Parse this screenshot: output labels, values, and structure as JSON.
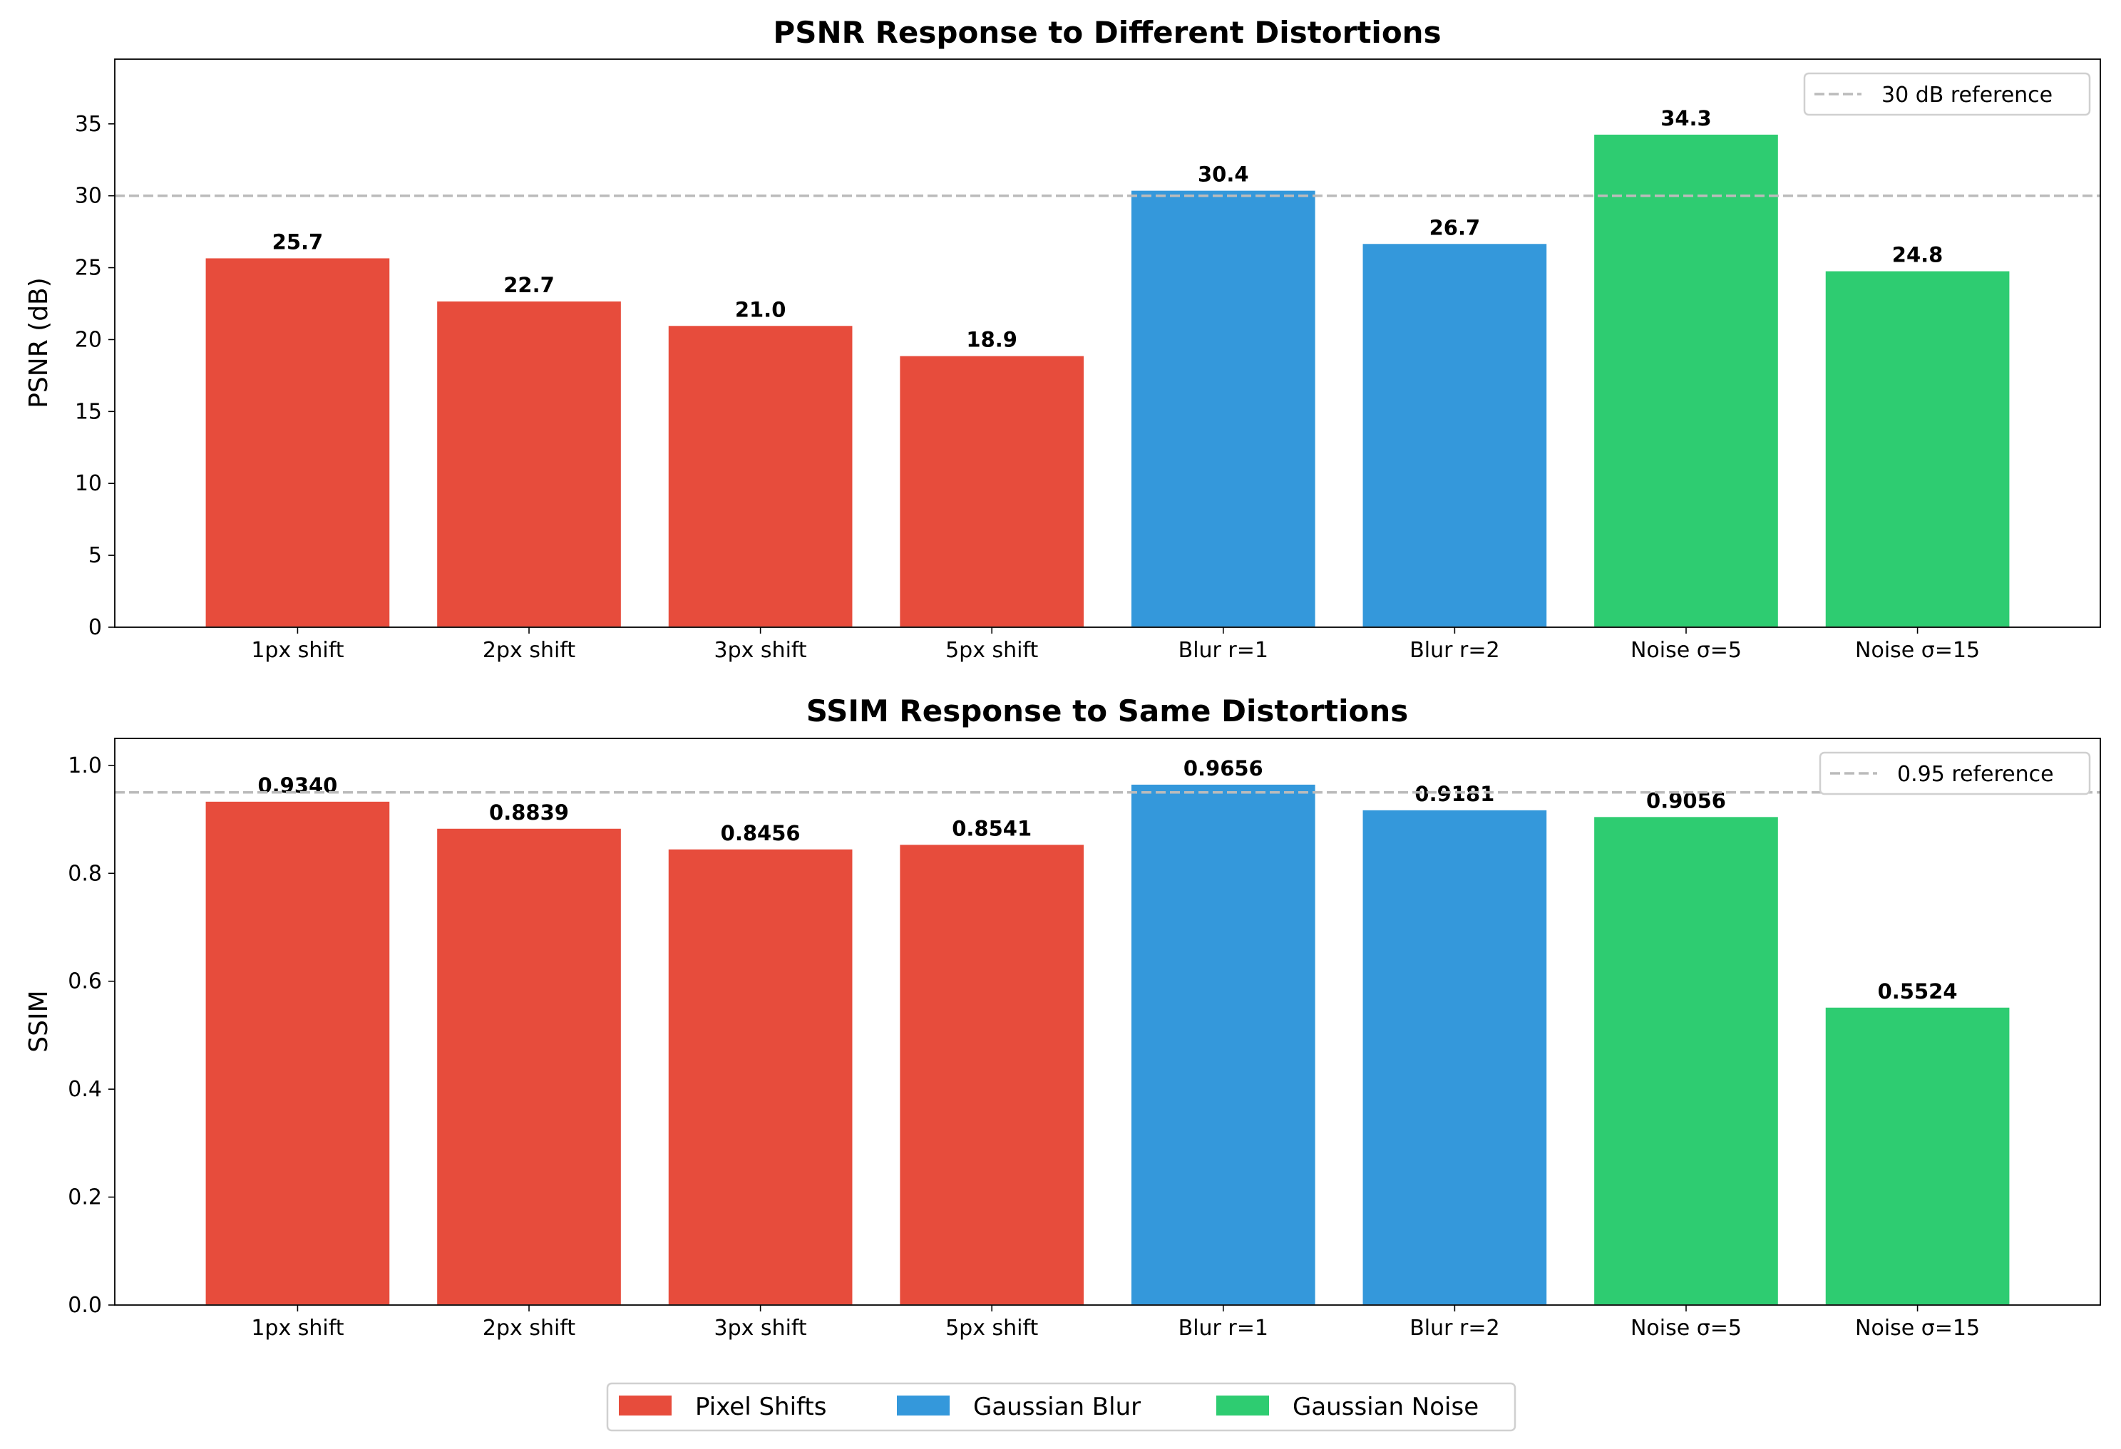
{
  "chart_data": [
    {
      "type": "bar",
      "title": "PSNR Response to Different Distortions",
      "xlabel": "",
      "ylabel": "PSNR (dB)",
      "categories": [
        "1px shift",
        "2px shift",
        "3px shift",
        "5px shift",
        "Blur r=1",
        "Blur r=2",
        "Noise σ=5",
        "Noise σ=15"
      ],
      "values": [
        25.7,
        22.7,
        21.0,
        18.9,
        30.4,
        26.7,
        34.3,
        24.8
      ],
      "value_labels": [
        "25.7",
        "22.7",
        "21.0",
        "18.9",
        "30.4",
        "26.7",
        "34.3",
        "24.8"
      ],
      "groups": [
        0,
        0,
        0,
        0,
        1,
        1,
        2,
        2
      ],
      "ylim": [
        0,
        39.5
      ],
      "yticks": [
        0,
        5,
        10,
        15,
        20,
        25,
        30,
        35
      ],
      "ytick_labels": [
        "0",
        "5",
        "10",
        "15",
        "20",
        "25",
        "30",
        "35"
      ],
      "reference": {
        "value": 30,
        "label": "30 dB reference",
        "color": "#bbbbbb",
        "style": "dashed"
      },
      "legend_placement": "top-right",
      "grid": false
    },
    {
      "type": "bar",
      "title": "SSIM Response to Same Distortions",
      "xlabel": "",
      "ylabel": "SSIM",
      "categories": [
        "1px shift",
        "2px shift",
        "3px shift",
        "5px shift",
        "Blur r=1",
        "Blur r=2",
        "Noise σ=5",
        "Noise σ=15"
      ],
      "values": [
        0.934,
        0.8839,
        0.8456,
        0.8541,
        0.9656,
        0.9181,
        0.9056,
        0.5524
      ],
      "value_labels": [
        "0.9340",
        "0.8839",
        "0.8456",
        "0.8541",
        "0.9656",
        "0.9181",
        "0.9056",
        "0.5524"
      ],
      "groups": [
        0,
        0,
        0,
        0,
        1,
        1,
        2,
        2
      ],
      "ylim": [
        0,
        1.05
      ],
      "yticks": [
        0,
        0.2,
        0.4,
        0.6,
        0.8,
        1.0
      ],
      "ytick_labels": [
        "0.0",
        "0.2",
        "0.4",
        "0.6",
        "0.8",
        "1.0"
      ],
      "reference": {
        "value": 0.95,
        "label": "0.95 reference",
        "color": "#bbbbbb",
        "style": "dashed"
      },
      "legend_placement": "top-right",
      "grid": false
    }
  ],
  "legend": {
    "placement": "bottom-center",
    "entries": [
      {
        "name": "Pixel Shifts",
        "color": "#e74c3c"
      },
      {
        "name": "Gaussian Blur",
        "color": "#3498db"
      },
      {
        "name": "Gaussian Noise",
        "color": "#2ecc71"
      }
    ]
  }
}
